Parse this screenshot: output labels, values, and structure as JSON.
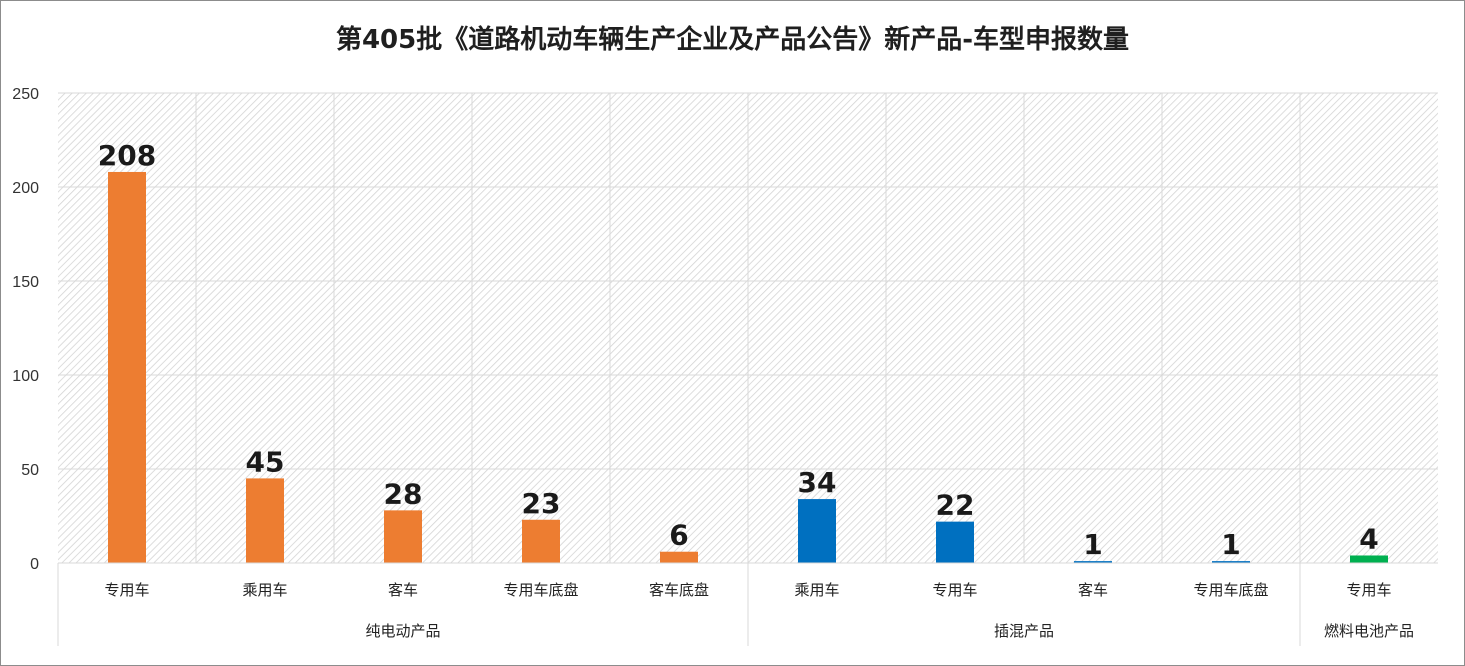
{
  "chart_data": {
    "type": "bar",
    "title": "第405批《道路机动车辆生产企业及产品公告》新产品-车型申报数量",
    "ylim": [
      0,
      250
    ],
    "yticks": [
      0,
      50,
      100,
      150,
      200,
      250
    ],
    "grid": true,
    "legend": "none",
    "categories": [
      "专用车",
      "乘用车",
      "客车",
      "专用车底盘",
      "客车底盘",
      "乘用车",
      "专用车",
      "客车",
      "专用车底盘",
      "专用车"
    ],
    "values": [
      208,
      45,
      28,
      23,
      6,
      34,
      22,
      1,
      1,
      4
    ],
    "bar_colors": [
      "#ed7d31",
      "#ed7d31",
      "#ed7d31",
      "#ed7d31",
      "#ed7d31",
      "#0070c0",
      "#0070c0",
      "#0070c0",
      "#0070c0",
      "#00b050"
    ],
    "groups": [
      {
        "label": "纯电动产品",
        "count": 5
      },
      {
        "label": "插混产品",
        "count": 4
      },
      {
        "label": "燃料电池产品",
        "count": 1
      }
    ]
  }
}
